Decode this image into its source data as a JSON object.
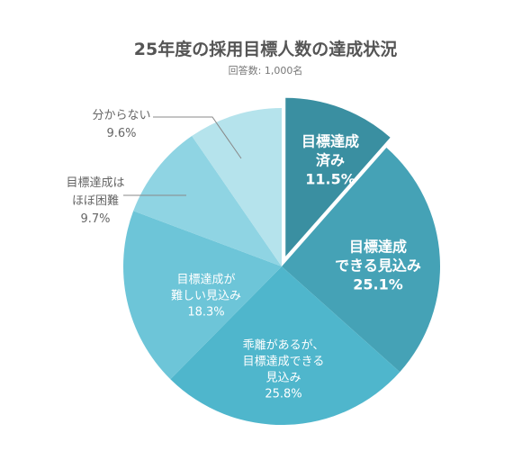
{
  "chart_data": {
    "type": "pie",
    "title": "25年度の採用目標人数の達成状況",
    "subtitle": "回答数: 1,000名",
    "slices": [
      {
        "label_lines": [
          "目標達成",
          "済み"
        ],
        "value_label": "11.5%",
        "value": 11.5,
        "color": "#3a8fa1",
        "text_color": "#ffffff",
        "exploded": true
      },
      {
        "label_lines": [
          "目標達成",
          "できる見込み"
        ],
        "value_label": "25.1%",
        "value": 25.1,
        "color": "#45a2b6",
        "text_color": "#ffffff",
        "exploded": false
      },
      {
        "label_lines": [
          "乖離があるが、",
          "目標達成できる",
          "見込み"
        ],
        "value_label": "25.8%",
        "value": 25.8,
        "color": "#4fb6cc",
        "text_color": "#ffffff",
        "exploded": false
      },
      {
        "label_lines": [
          "目標達成が",
          "難しい見込み"
        ],
        "value_label": "18.3%",
        "value": 18.3,
        "color": "#6dc5d8",
        "text_color": "#ffffff",
        "exploded": false
      },
      {
        "label_lines": [
          "目標達成は",
          "ほぼ困難"
        ],
        "value_label": "9.7%",
        "value": 9.7,
        "color": "#8fd4e3",
        "text_color": "#555555",
        "exploded": false,
        "outside": true
      },
      {
        "label_lines": [
          "分からない"
        ],
        "value_label": "9.6%",
        "value": 9.6,
        "color": "#b5e3ec",
        "text_color": "#555555",
        "exploded": false,
        "outside": true
      }
    ]
  }
}
